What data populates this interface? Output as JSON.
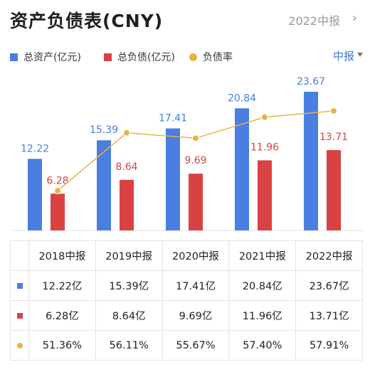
{
  "header": {
    "title": "资产负债表(CNY)",
    "period": "2022中报",
    "chevron": "›"
  },
  "legend": {
    "assets": "总资产(亿元)",
    "liabilities": "总负债(亿元)",
    "ratio": "负债率"
  },
  "period_selector": "中报",
  "colors": {
    "assets": "#4a7ee0",
    "liabilities": "#d94242",
    "ratio": "#eab143",
    "accent": "#3a77d9"
  },
  "chart_data": {
    "type": "bar",
    "categories": [
      "2018中报",
      "2019中报",
      "2020中报",
      "2021中报",
      "2022中报"
    ],
    "series": [
      {
        "name": "总资产(亿元)",
        "type": "bar",
        "values": [
          12.22,
          15.39,
          17.41,
          20.84,
          23.67
        ]
      },
      {
        "name": "总负债(亿元)",
        "type": "bar",
        "values": [
          6.28,
          8.64,
          9.69,
          11.96,
          13.71
        ]
      },
      {
        "name": "负债率",
        "type": "line",
        "values": [
          51.36,
          56.11,
          55.67,
          57.4,
          57.91
        ]
      }
    ],
    "ylim_bars": [
      0,
      23.67
    ],
    "ylim_ratio": [
      51.36,
      57.91
    ],
    "grid": false
  },
  "table": {
    "headers": [
      "2018中报",
      "2019中报",
      "2020中报",
      "2021中报",
      "2022中报"
    ],
    "rows": [
      {
        "key": "assets",
        "cells": [
          "12.22亿",
          "15.39亿",
          "17.41亿",
          "20.84亿",
          "23.67亿"
        ]
      },
      {
        "key": "liabilities",
        "cells": [
          "6.28亿",
          "8.64亿",
          "9.69亿",
          "11.96亿",
          "13.71亿"
        ]
      },
      {
        "key": "ratio",
        "cells": [
          "51.36%",
          "56.11%",
          "55.67%",
          "57.40%",
          "57.91%"
        ]
      }
    ]
  }
}
